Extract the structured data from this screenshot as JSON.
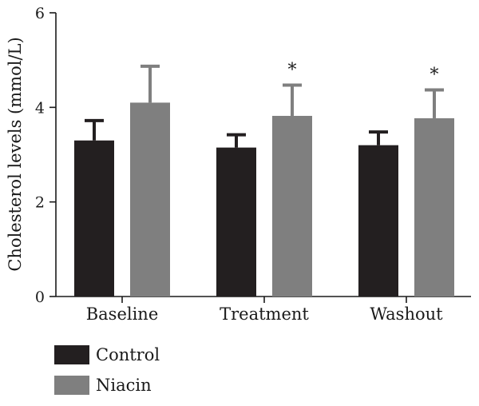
{
  "chart_data": {
    "type": "bar",
    "title": "",
    "xlabel": "",
    "ylabel": "Cholesterol levels (mmol/L)",
    "ylim": [
      0,
      6
    ],
    "yticks": [
      0,
      2,
      4,
      6
    ],
    "grid": false,
    "legend_position": "bottom-left",
    "categories": [
      "Baseline",
      "Treatment",
      "Washout"
    ],
    "series": [
      {
        "name": "Control",
        "color": "#231f20",
        "values": [
          3.3,
          3.15,
          3.2
        ],
        "error_upper": [
          3.72,
          3.42,
          3.48
        ],
        "significance": [
          "",
          "",
          ""
        ]
      },
      {
        "name": "Niacin",
        "color": "#7f7f7f",
        "values": [
          4.1,
          3.82,
          3.77
        ],
        "error_upper": [
          4.87,
          4.47,
          4.37
        ],
        "significance": [
          "",
          "*",
          "*"
        ]
      }
    ]
  }
}
